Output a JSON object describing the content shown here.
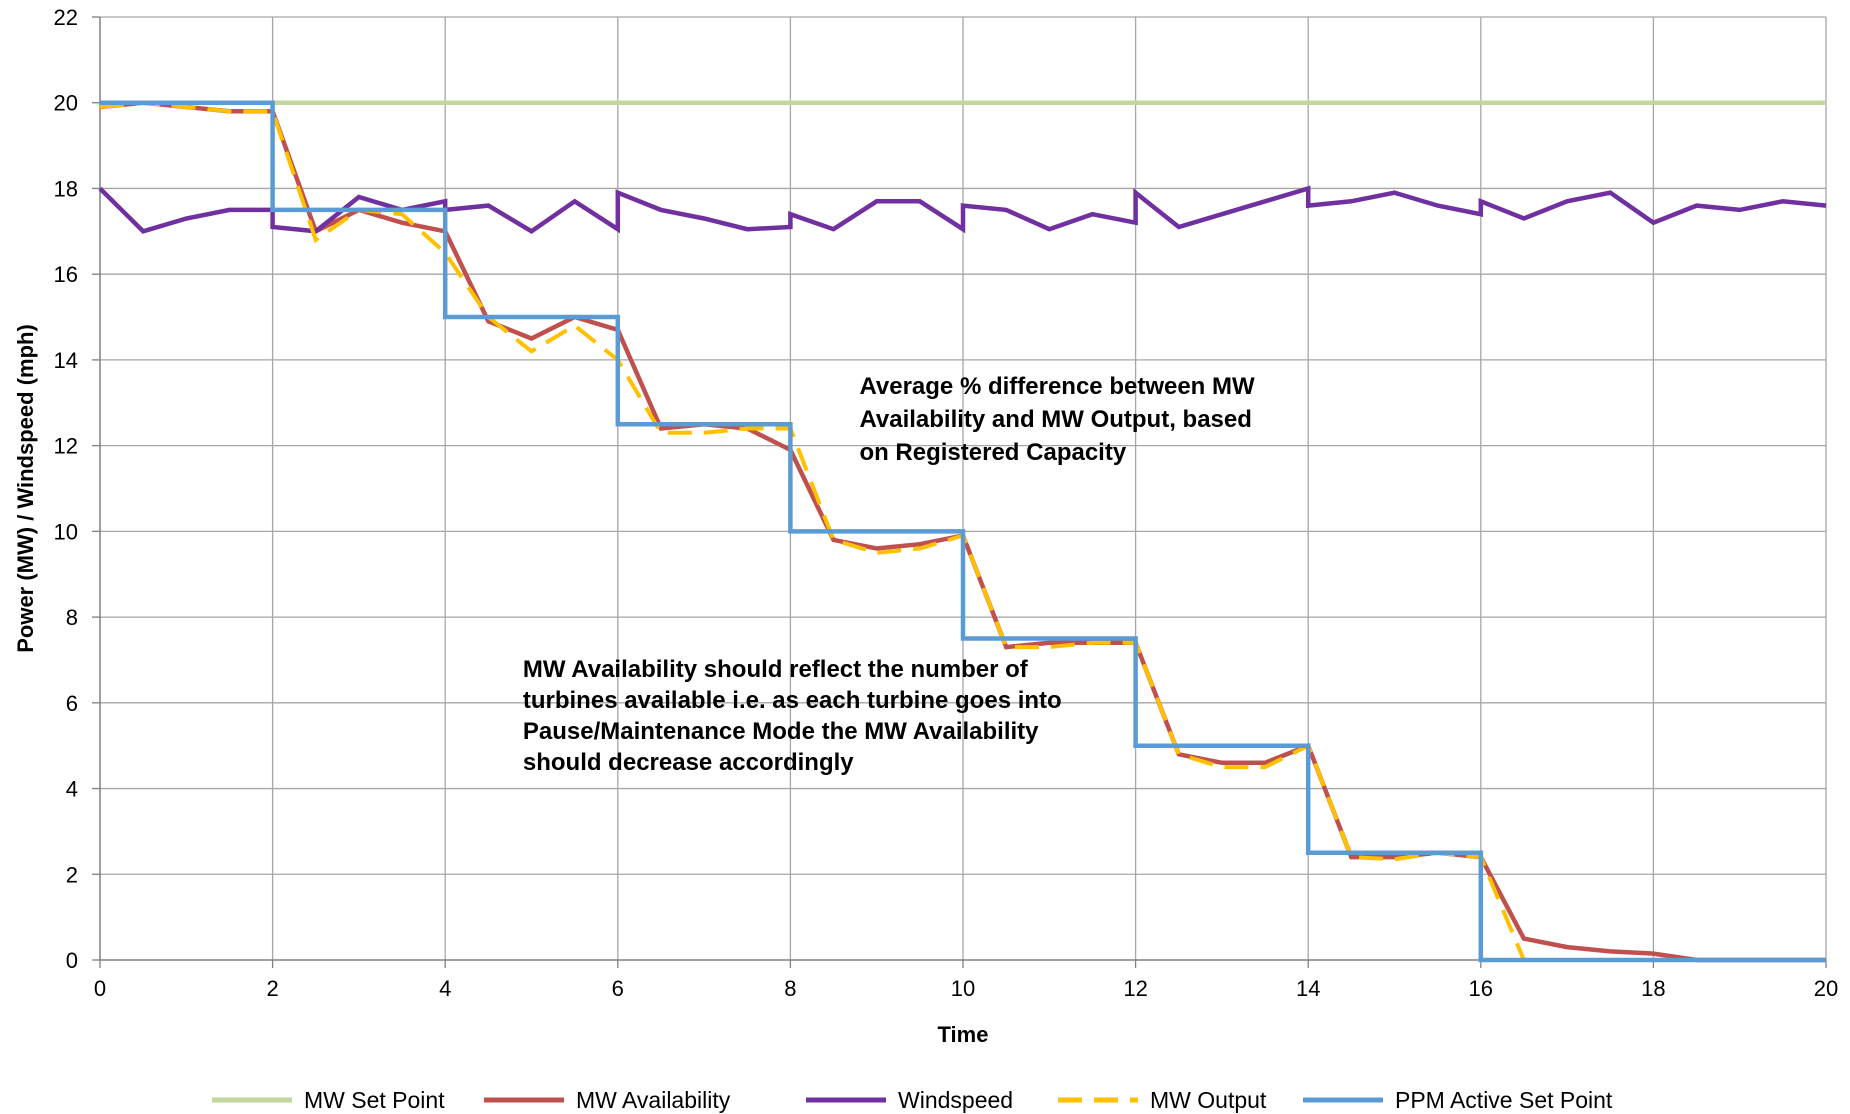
{
  "chart_data": {
    "type": "line",
    "title": "",
    "xlabel": "Time",
    "ylabel": "Power (MW) / Windspeed (mph)",
    "xlim": [
      0,
      20
    ],
    "ylim": [
      0,
      22
    ],
    "xticks": [
      0,
      2,
      4,
      6,
      8,
      10,
      12,
      14,
      16,
      18,
      20
    ],
    "yticks": [
      0,
      2,
      4,
      6,
      8,
      10,
      12,
      14,
      16,
      18,
      20,
      22
    ],
    "grid": true,
    "legend_position": "bottom",
    "series": [
      {
        "name": "MW Set Point",
        "color": "#c3d69b",
        "style": "solid",
        "points": [
          [
            0,
            20
          ],
          [
            20,
            20
          ]
        ]
      },
      {
        "name": "MW Availability",
        "color": "#c0504d",
        "style": "solid",
        "points": [
          [
            0,
            19.9
          ],
          [
            0.5,
            20
          ],
          [
            1,
            19.9
          ],
          [
            1.5,
            19.8
          ],
          [
            2,
            19.8
          ],
          [
            2.5,
            17
          ],
          [
            3,
            17.5
          ],
          [
            3.5,
            17.2
          ],
          [
            4,
            17
          ],
          [
            4.5,
            14.9
          ],
          [
            5,
            14.5
          ],
          [
            5.5,
            15
          ],
          [
            6,
            14.7
          ],
          [
            6.5,
            12.4
          ],
          [
            7,
            12.5
          ],
          [
            7.5,
            12.4
          ],
          [
            8,
            11.9
          ],
          [
            8.5,
            9.8
          ],
          [
            9,
            9.6
          ],
          [
            9.5,
            9.7
          ],
          [
            10,
            9.9
          ],
          [
            10.5,
            7.3
          ],
          [
            11,
            7.4
          ],
          [
            11.5,
            7.4
          ],
          [
            12,
            7.4
          ],
          [
            12.5,
            4.8
          ],
          [
            13,
            4.6
          ],
          [
            13.5,
            4.6
          ],
          [
            14,
            5
          ],
          [
            14.5,
            2.4
          ],
          [
            15,
            2.4
          ],
          [
            15.5,
            2.5
          ],
          [
            16,
            2.4
          ],
          [
            16.5,
            0.5
          ],
          [
            17,
            0.3
          ],
          [
            17.5,
            0.2
          ],
          [
            18,
            0.15
          ],
          [
            18.5,
            0
          ],
          [
            19,
            0
          ],
          [
            19.5,
            0
          ],
          [
            20,
            0
          ]
        ]
      },
      {
        "name": "Windspeed",
        "color": "#7030a0",
        "style": "solid",
        "points": [
          [
            0,
            18
          ],
          [
            0.5,
            17
          ],
          [
            1,
            17.3
          ],
          [
            1.5,
            17.5
          ],
          [
            2,
            17.5
          ],
          [
            2,
            17.1
          ],
          [
            2.5,
            17
          ],
          [
            3,
            17.8
          ],
          [
            3.5,
            17.5
          ],
          [
            4,
            17.7
          ],
          [
            4,
            17.5
          ],
          [
            4.5,
            17.6
          ],
          [
            5,
            17
          ],
          [
            5.5,
            17.7
          ],
          [
            6,
            17.05
          ],
          [
            6,
            17.9
          ],
          [
            6.5,
            17.5
          ],
          [
            7,
            17.3
          ],
          [
            7.5,
            17.05
          ],
          [
            8,
            17.1
          ],
          [
            8,
            17.4
          ],
          [
            8.5,
            17.05
          ],
          [
            9,
            17.7
          ],
          [
            9.5,
            17.7
          ],
          [
            10,
            17.05
          ],
          [
            10,
            17.6
          ],
          [
            10.5,
            17.5
          ],
          [
            11,
            17.05
          ],
          [
            11.5,
            17.4
          ],
          [
            12,
            17.2
          ],
          [
            12,
            17.9
          ],
          [
            12.5,
            17.1
          ],
          [
            13,
            17.4
          ],
          [
            13.5,
            17.7
          ],
          [
            14,
            18
          ],
          [
            14,
            17.6
          ],
          [
            14.5,
            17.7
          ],
          [
            15,
            17.9
          ],
          [
            15.5,
            17.6
          ],
          [
            16,
            17.4
          ],
          [
            16,
            17.7
          ],
          [
            16.5,
            17.3
          ],
          [
            17,
            17.7
          ],
          [
            17.5,
            17.9
          ],
          [
            18,
            17.2
          ],
          [
            18.5,
            17.6
          ],
          [
            19,
            17.5
          ],
          [
            19.5,
            17.7
          ],
          [
            20,
            17.6
          ]
        ]
      },
      {
        "name": "MW Output",
        "color": "#ffc000",
        "style": "dashed",
        "points": [
          [
            0,
            19.9
          ],
          [
            0.5,
            20
          ],
          [
            1,
            19.9
          ],
          [
            1.5,
            19.8
          ],
          [
            2,
            19.8
          ],
          [
            2.5,
            16.8
          ],
          [
            3,
            17.5
          ],
          [
            3.5,
            17.4
          ],
          [
            4,
            16.5
          ],
          [
            4.5,
            15
          ],
          [
            5,
            14.2
          ],
          [
            5.5,
            14.8
          ],
          [
            6,
            14
          ],
          [
            6.5,
            12.3
          ],
          [
            7,
            12.3
          ],
          [
            7.5,
            12.4
          ],
          [
            8,
            12.4
          ],
          [
            8.5,
            9.8
          ],
          [
            9,
            9.5
          ],
          [
            9.5,
            9.6
          ],
          [
            10,
            9.9
          ],
          [
            10.5,
            7.3
          ],
          [
            11,
            7.3
          ],
          [
            11.5,
            7.4
          ],
          [
            12,
            7.4
          ],
          [
            12.5,
            4.8
          ],
          [
            13,
            4.5
          ],
          [
            13.5,
            4.5
          ],
          [
            14,
            5
          ],
          [
            14.5,
            2.4
          ],
          [
            15,
            2.35
          ],
          [
            15.5,
            2.5
          ],
          [
            16,
            2.4
          ],
          [
            16.5,
            0
          ]
        ]
      },
      {
        "name": "PPM Active Set Point",
        "color": "#5b9bd5",
        "style": "solid",
        "points": [
          [
            0,
            20
          ],
          [
            2,
            20
          ],
          [
            2,
            17.5
          ],
          [
            4,
            17.5
          ],
          [
            4,
            15
          ],
          [
            6,
            15
          ],
          [
            6,
            12.5
          ],
          [
            8,
            12.5
          ],
          [
            8,
            10
          ],
          [
            10,
            10
          ],
          [
            10,
            7.5
          ],
          [
            12,
            7.5
          ],
          [
            12,
            5
          ],
          [
            14,
            5
          ],
          [
            14,
            2.5
          ],
          [
            16,
            2.5
          ],
          [
            16,
            0
          ],
          [
            20,
            0
          ]
        ]
      }
    ],
    "annotations": [
      {
        "lines": [
          "Average % difference between MW",
          "Availability and MW Output, based",
          "on Registered Capacity"
        ],
        "anchor": [
          8.8,
          13.2
        ]
      },
      {
        "lines": [
          "MW Availability should reflect the number of",
          "turbines available i.e. as each turbine goes into",
          "Pause/Maintenance Mode the MW Availability",
          "should decrease accordingly"
        ],
        "anchor": [
          4.9,
          6.6
        ]
      }
    ]
  }
}
